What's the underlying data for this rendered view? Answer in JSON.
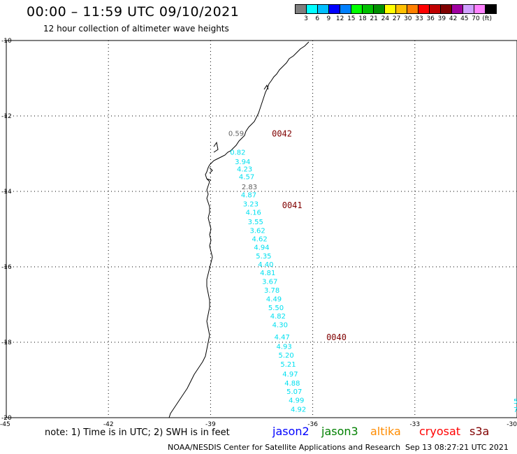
{
  "header": {
    "title": "00:00 – 11:59 UTC 09/10/2021",
    "subtitle": "12 hour collection of altimeter wave heights"
  },
  "legend": {
    "colors": [
      "#7f7f7f",
      "#00ffff",
      "#00bfff",
      "#0000ff",
      "#0080ff",
      "#00ff00",
      "#00c000",
      "#009000",
      "#ffff00",
      "#ffc000",
      "#ff8000",
      "#ff0000",
      "#c00000",
      "#800000",
      "#a000a0",
      "#d0a0ff",
      "#ff80ff",
      "#000000"
    ],
    "labels": [
      "3",
      "6",
      "9",
      "12",
      "15",
      "18",
      "21",
      "24",
      "27",
      "30",
      "33",
      "36",
      "39",
      "42",
      "45",
      "70",
      "(ft)"
    ]
  },
  "map": {
    "lon_range": [
      -45,
      -30
    ],
    "lat_range": [
      -20,
      -10
    ],
    "grid": "dotted",
    "y_tick_labels": [
      "-10",
      "-12",
      "-14",
      "-16",
      "-18",
      "-20"
    ],
    "x_tick_labels": [
      "-45",
      "-42",
      "-39",
      "-36",
      "-33",
      "-30"
    ],
    "colors": {
      "coast": "#000000",
      "cyan": "#00e0f0",
      "gray": "#606060",
      "rev": "#800000"
    },
    "passes": [
      {
        "label": "0042",
        "lon": -37.2,
        "lat": -12.45
      },
      {
        "label": "0041",
        "lon": -36.9,
        "lat": -14.35
      },
      {
        "label": "0040",
        "lon": -35.6,
        "lat": -17.85
      }
    ],
    "observations": [
      {
        "v": "0.59",
        "lon": -38.25,
        "lat": -12.45,
        "c": "gray"
      },
      {
        "v": "0.82",
        "lon": -38.2,
        "lat": -12.95,
        "c": "cyan"
      },
      {
        "v": "3.94",
        "lon": -38.06,
        "lat": -13.2,
        "c": "cyan"
      },
      {
        "v": "4.23",
        "lon": -38.0,
        "lat": -13.4,
        "c": "cyan"
      },
      {
        "v": "4.57",
        "lon": -37.94,
        "lat": -13.6,
        "c": "cyan"
      },
      {
        "v": "2.83",
        "lon": -37.86,
        "lat": -13.87,
        "c": "gray"
      },
      {
        "v": "4.87",
        "lon": -37.88,
        "lat": -14.08,
        "c": "cyan"
      },
      {
        "v": "3.23",
        "lon": -37.82,
        "lat": -14.32,
        "c": "cyan"
      },
      {
        "v": "4.16",
        "lon": -37.74,
        "lat": -14.55,
        "c": "cyan"
      },
      {
        "v": "3.55",
        "lon": -37.68,
        "lat": -14.8,
        "c": "cyan"
      },
      {
        "v": "3.62",
        "lon": -37.62,
        "lat": -15.03,
        "c": "cyan"
      },
      {
        "v": "4.62",
        "lon": -37.56,
        "lat": -15.25,
        "c": "cyan"
      },
      {
        "v": "4.94",
        "lon": -37.5,
        "lat": -15.47,
        "c": "cyan"
      },
      {
        "v": "5.35",
        "lon": -37.44,
        "lat": -15.7,
        "c": "cyan"
      },
      {
        "v": "4.40",
        "lon": -37.38,
        "lat": -15.93,
        "c": "cyan"
      },
      {
        "v": "4.81",
        "lon": -37.32,
        "lat": -16.15,
        "c": "cyan"
      },
      {
        "v": "3.67",
        "lon": -37.26,
        "lat": -16.38,
        "c": "cyan"
      },
      {
        "v": "3.78",
        "lon": -37.2,
        "lat": -16.61,
        "c": "cyan"
      },
      {
        "v": "4.49",
        "lon": -37.14,
        "lat": -16.84,
        "c": "cyan"
      },
      {
        "v": "5.50",
        "lon": -37.08,
        "lat": -17.07,
        "c": "cyan"
      },
      {
        "v": "4.82",
        "lon": -37.02,
        "lat": -17.3,
        "c": "cyan"
      },
      {
        "v": "4.30",
        "lon": -36.96,
        "lat": -17.53,
        "c": "cyan"
      },
      {
        "v": "4.47",
        "lon": -36.9,
        "lat": -17.85,
        "c": "cyan"
      },
      {
        "v": "4.93",
        "lon": -36.84,
        "lat": -18.1,
        "c": "cyan"
      },
      {
        "v": "5.20",
        "lon": -36.78,
        "lat": -18.33,
        "c": "cyan"
      },
      {
        "v": "5.21",
        "lon": -36.72,
        "lat": -18.57,
        "c": "cyan"
      },
      {
        "v": "4.97",
        "lon": -36.66,
        "lat": -18.83,
        "c": "cyan"
      },
      {
        "v": "4.88",
        "lon": -36.6,
        "lat": -19.07,
        "c": "cyan"
      },
      {
        "v": "5.07",
        "lon": -36.54,
        "lat": -19.3,
        "c": "cyan"
      },
      {
        "v": "4.99",
        "lon": -36.48,
        "lat": -19.53,
        "c": "cyan"
      },
      {
        "v": "4.92",
        "lon": -36.42,
        "lat": -19.77,
        "c": "cyan"
      }
    ]
  },
  "footer": {
    "note": "note: 1) Time is in UTC; 2) SWH is in feet",
    "satellites": [
      {
        "name": "jason2",
        "color": "#0000ff"
      },
      {
        "name": "jason3",
        "color": "#008000"
      },
      {
        "name": "altika",
        "color": "#ff8c00"
      },
      {
        "name": "cryosat",
        "color": "#ff0000"
      },
      {
        "name": "s3a",
        "color": "#800000"
      }
    ],
    "credit": "NOAA/NESDIS Center for Satellite Applications and Research",
    "timestamp": "Sep 13 08:27:21 UTC 2021"
  }
}
